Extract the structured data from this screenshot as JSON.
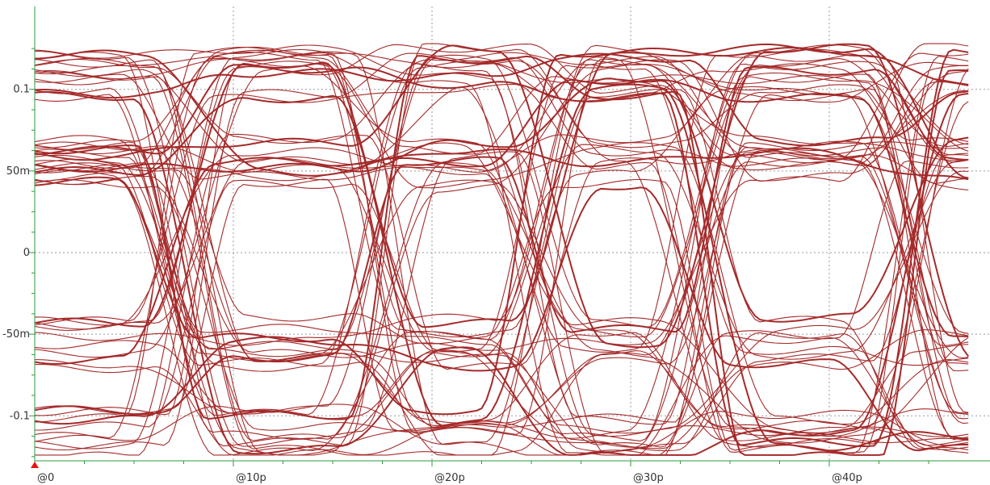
{
  "chart_data": {
    "type": "line",
    "title": "",
    "xlabel": "",
    "ylabel": "",
    "x_ticks": [
      0,
      10,
      20,
      30,
      40
    ],
    "x_tick_labels": [
      "@0",
      "@10p",
      "@20p",
      "@30p",
      "@40p"
    ],
    "y_ticks": [
      -0.1,
      -0.05,
      0,
      0.05,
      0.1
    ],
    "y_tick_labels": [
      "-0.1",
      "-50m",
      "0",
      "50m",
      "0.1"
    ],
    "xlim": [
      0,
      47.2
    ],
    "ylim": [
      -0.128,
      0.15
    ],
    "grid": true,
    "bit_period_ps": 12.5,
    "levels": [
      -0.11,
      -0.055,
      0.055,
      0.11
    ],
    "rise_center_ps": [
      7.5,
      33.5
    ],
    "fall_center_ps": [
      17.5
    ],
    "trace_color": "#a52a2a",
    "grid_color": "#9a9a9a",
    "axis_color": "#2e9b3e",
    "marker_color": "#ee1111"
  }
}
